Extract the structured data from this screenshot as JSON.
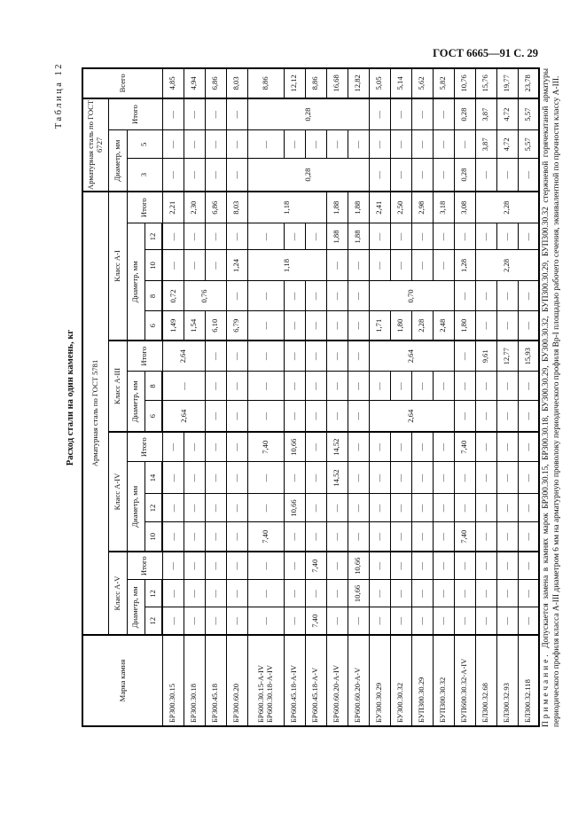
{
  "page_header": "ГОСТ 6665—91 С. 29",
  "table_label": "Таблица 12",
  "table_title": "Расход стали на один камень, кг",
  "header": {
    "mark": "Марка камня",
    "gost5781": "Арматурная сталь по ГОСТ 5781",
    "gost6727": "Арматурная сталь по ГОСТ 6727",
    "total": "Всего",
    "classes": [
      "Класс А-V",
      "Класс А-IV",
      "Класс А-III",
      "Класс А-I"
    ],
    "diameter": "Диаметр, мм",
    "itogo": "Итого",
    "diam_av": [
      "12",
      "12"
    ],
    "diam_aiv": [
      "10",
      "12",
      "14"
    ],
    "diam_aiii": [
      "6",
      "8"
    ],
    "diam_ai": [
      "6",
      "8",
      "10",
      "12"
    ],
    "diam_gost6727": [
      "3",
      "5"
    ]
  },
  "rows": [
    {
      "mark": [
        "БР300.30.15"
      ],
      "cells": [
        "—",
        "—",
        "—",
        "—",
        "—",
        "—",
        "—",
        {
          "v": "2,64",
          "rs": 2
        },
        {
          "v": "—",
          "rs": 2
        },
        {
          "v": "2,64",
          "rs": 2
        },
        "1,49",
        "0,72",
        "—",
        "—",
        "2,21",
        "—",
        "—",
        "—",
        "4,85"
      ]
    },
    {
      "mark": [
        "БР300.30.18"
      ],
      "cells": [
        "—",
        "—",
        "—",
        "—",
        "—",
        "—",
        "—",
        null,
        null,
        null,
        "1,54",
        {
          "v": "0,76",
          "rs": 2
        },
        "—",
        "—",
        "2,30",
        "—",
        "—",
        "—",
        "4,94"
      ]
    },
    {
      "mark": [
        "БР300.45.18"
      ],
      "cells": [
        "—",
        "—",
        "—",
        "—",
        "—",
        "—",
        "—",
        "—",
        "—",
        "—",
        "6,10",
        null,
        "—",
        "—",
        "6,86",
        "—",
        "—",
        "—",
        "6,86"
      ]
    },
    {
      "mark": [
        "БР300.60.20"
      ],
      "cells": [
        "—",
        "—",
        "—",
        "—",
        "—",
        "—",
        "—",
        "—",
        "—",
        "—",
        "6,79",
        "—",
        "1,24",
        "—",
        "8,03",
        "—",
        "—",
        "—",
        "8,03"
      ]
    },
    {
      "mark": [
        "БР600.30.15-А-IV",
        "БР600.30.18-А-IV"
      ],
      "cells": [
        "—",
        "—",
        "—",
        "7,40",
        "—",
        "—",
        "7,40",
        "—",
        "—",
        "—",
        "—",
        "—",
        {
          "v": "1,18",
          "rs": 3
        },
        "—",
        {
          "v": "1,18",
          "rs": 3
        },
        {
          "v": "0,28",
          "rs": 5
        },
        "—",
        {
          "v": "0,28",
          "rs": 5
        },
        "8,86"
      ]
    },
    {
      "mark": [
        "БР600.45.18-А-IV"
      ],
      "cells": [
        "—",
        "—",
        "—",
        "—",
        "10,66",
        "—",
        "10,66",
        "—",
        "—",
        "—",
        "—",
        "—",
        null,
        "—",
        null,
        null,
        "—",
        null,
        "12,12"
      ]
    },
    {
      "mark": [
        "БР600.45.18-А-V"
      ],
      "cells": [
        "7,40",
        "—",
        "7,40",
        "—",
        "—",
        "—",
        "—",
        "—",
        "—",
        "—",
        "—",
        "—",
        null,
        "—",
        null,
        null,
        "—",
        null,
        "8,86"
      ]
    },
    {
      "mark": [
        "БР600.60.20-А-IV"
      ],
      "cells": [
        "—",
        "—",
        "—",
        "—",
        "—",
        "14,52",
        "14,52",
        "—",
        "—",
        "—",
        "—",
        "—",
        "—",
        "1,88",
        "1,88",
        null,
        "—",
        null,
        "16,68"
      ]
    },
    {
      "mark": [
        "БР600.60.20-А-V"
      ],
      "cells": [
        "—",
        "10,66",
        "10,66",
        "—",
        "—",
        "—",
        "—",
        "—",
        "—",
        "—",
        "—",
        "—",
        "—",
        "1,88",
        "1,88",
        null,
        "—",
        null,
        "12,82"
      ]
    },
    {
      "mark": [
        "БУ300.30.29"
      ],
      "cells": [
        "—",
        "—",
        "—",
        "—",
        "—",
        "—",
        "—",
        {
          "v": "2,64",
          "rs": 4
        },
        "—",
        {
          "v": "2,64",
          "rs": 4
        },
        "1,71",
        {
          "v": "0,70",
          "rs": 4
        },
        "—",
        "—",
        "2,41",
        "—",
        "—",
        "—",
        "5,05"
      ]
    },
    {
      "mark": [
        "БУ300.30.32"
      ],
      "cells": [
        "—",
        "—",
        "—",
        "—",
        "—",
        "—",
        "—",
        null,
        "—",
        null,
        "1,80",
        null,
        "—",
        "—",
        "2,50",
        "—",
        "—",
        "—",
        "5,14"
      ]
    },
    {
      "mark": [
        "БУП300.30.29"
      ],
      "cells": [
        "—",
        "—",
        "—",
        "—",
        "—",
        "—",
        "—",
        null,
        "—",
        null,
        "2,28",
        null,
        "—",
        "—",
        "2,98",
        "—",
        "—",
        "—",
        "5,62"
      ]
    },
    {
      "mark": [
        "БУП300.30.32"
      ],
      "cells": [
        "—",
        "—",
        "—",
        "—",
        "—",
        "—",
        "—",
        null,
        "—",
        null,
        "2,48",
        null,
        "—",
        "—",
        "3,18",
        "—",
        "—",
        "—",
        "5,82"
      ]
    },
    {
      "mark": [
        "БУП600.30.32-А-IV"
      ],
      "cells": [
        "—",
        "—",
        "—",
        "7,40",
        "—",
        "—",
        "7,40",
        "—",
        "—",
        "—",
        "1,80",
        "—",
        "1,28",
        "—",
        "3,08",
        "0,28",
        "—",
        "0,28",
        "10,76"
      ]
    },
    {
      "mark": [
        "БЛ300.32.68"
      ],
      "cells": [
        "—",
        "—",
        "—",
        "—",
        "—",
        "—",
        "—",
        "—",
        "—",
        "9,61",
        "—",
        "—",
        {
          "v": "2,28",
          "rs": 3
        },
        "—",
        {
          "v": "2,28",
          "rs": 3
        },
        "—",
        "3,87",
        "3,87",
        "15,76"
      ]
    },
    {
      "mark": [
        "БЛ300.32.93"
      ],
      "cells": [
        "—",
        "—",
        "—",
        "—",
        "—",
        "—",
        "—",
        "—",
        "—",
        "12,77",
        "—",
        "—",
        null,
        "—",
        null,
        "—",
        "4,72",
        "4,72",
        "19,77"
      ]
    },
    {
      "mark": [
        "БЛ300.32.118"
      ],
      "cells": [
        "—",
        "—",
        "—",
        "—",
        "—",
        "—",
        "—",
        "—",
        "—",
        "15,93",
        "—",
        "—",
        null,
        "—",
        null,
        "—",
        "5,57",
        "5,57",
        "23,78"
      ]
    }
  ],
  "note": {
    "prefix": "Примечание.",
    "text": "Допускается замена в камнях марок БР300.30.15, БР300.30.18, БУ300.30.29, БУ300.30.32, БУП300.30.29, БУП300.30.32 стержневой горячекатаной арматуры периодического профиля класса А-III диаметром 6 мм на арматурную проволоку периодического профиля Вр-I площадью рабочего сечения, эквивалентной по прочности классу А-III."
  }
}
